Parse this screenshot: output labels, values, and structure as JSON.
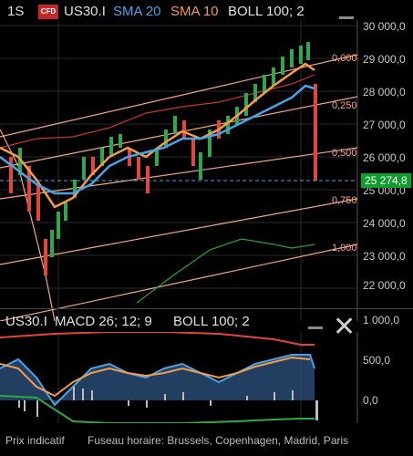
{
  "header": {
    "timeframe": "1S",
    "cfd_badge": "CFD",
    "symbol": "US30.I",
    "sma20": "SMA 20",
    "sma10": "SMA 10",
    "boll": "BOLL 100; 2"
  },
  "price_axis": [
    "30 000,0",
    "29 000,0",
    "28 000,0",
    "27 000,0",
    "26 000,0",
    "25 000,0",
    "24 000,0",
    "23 000,0",
    "22 000,0"
  ],
  "current_price": "25 274,8",
  "fib_levels": [
    "0,000",
    "0,250",
    "0,500",
    "0,750",
    "1,000"
  ],
  "macd_header": {
    "symbol": "US30.I",
    "macd": "MACD 26; 12; 9",
    "boll": "BOLL 100; 2"
  },
  "macd_axis": [
    "1 000,0",
    "500,0",
    "0,0"
  ],
  "footer": {
    "note": "Prix indicatif",
    "timezone": "Fuseau horaire: Brussels, Copenhagen, Madrid, Paris"
  },
  "colors": {
    "sma20": "#4aa3e6",
    "sma10": "#f39c4d",
    "boll": "#e05555",
    "up": "#2ea84a",
    "down": "#e2463c",
    "fib": "#f2a789",
    "badge": "#0f9d2c"
  },
  "icons": [
    "drawing-icon",
    "close-icon"
  ]
}
